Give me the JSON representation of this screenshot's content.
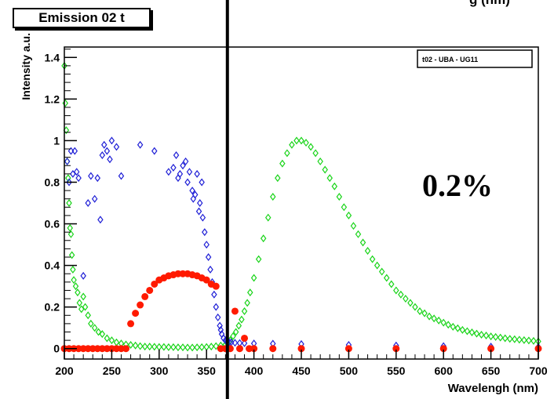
{
  "colors": {
    "series_green": "#19d419",
    "series_blue": "#1f1fd6",
    "series_red": "#ff1a00",
    "background": "#ffffff",
    "frame": "#000000"
  },
  "corner_text_partial": "g (nm)",
  "chart_data": {
    "type": "scatter",
    "title": "Emission 02 t",
    "xlabel": "Wavelengh (nm)",
    "ylabel": "Intensity a.u.",
    "xlim": [
      200,
      700
    ],
    "ylim": [
      -0.05,
      1.45
    ],
    "xticks": [
      200,
      250,
      300,
      350,
      400,
      450,
      500,
      550,
      600,
      650,
      700
    ],
    "yticks": [
      0,
      0.2,
      0.4,
      0.6,
      0.8,
      1,
      1.2,
      1.4
    ],
    "ytick_labels": [
      "0",
      "0.2",
      "0.4",
      "0.6",
      "0.8",
      "1",
      "1.2",
      "1.4"
    ],
    "legend_text": "t02 - UBA - UG11",
    "legend_position": "top-right",
    "annotation": "0.2%",
    "vertical_line_x": 372,
    "grid": false,
    "series": [
      {
        "marker": "open-diamond",
        "color": "#19d419",
        "x": [
          200,
          201,
          202,
          203,
          204,
          205,
          206,
          207,
          208,
          209,
          210,
          212,
          214,
          216,
          218,
          220,
          222,
          225,
          228,
          232,
          236,
          240,
          245,
          250,
          255,
          260,
          265,
          270,
          275,
          280,
          285,
          290,
          295,
          300,
          305,
          310,
          315,
          320,
          325,
          330,
          335,
          340,
          345,
          350,
          355,
          360,
          365,
          370,
          372,
          375,
          378,
          381,
          384,
          387,
          390,
          393,
          396,
          400,
          405,
          410,
          415,
          420,
          425,
          430,
          435,
          440,
          445,
          450,
          455,
          460,
          465,
          470,
          475,
          480,
          485,
          490,
          495,
          500,
          505,
          510,
          515,
          520,
          525,
          530,
          535,
          540,
          545,
          550,
          555,
          560,
          565,
          570,
          575,
          580,
          585,
          590,
          595,
          600,
          605,
          610,
          615,
          620,
          625,
          630,
          635,
          640,
          645,
          650,
          655,
          660,
          665,
          670,
          675,
          680,
          685,
          690,
          695,
          700
        ],
        "y": [
          1.36,
          1.18,
          1.05,
          0.9,
          0.82,
          0.7,
          0.58,
          0.55,
          0.45,
          0.38,
          0.33,
          0.3,
          0.27,
          0.22,
          0.19,
          0.25,
          0.2,
          0.16,
          0.12,
          0.1,
          0.08,
          0.07,
          0.05,
          0.04,
          0.03,
          0.025,
          0.02,
          0.018,
          0.015,
          0.012,
          0.01,
          0.01,
          0.009,
          0.008,
          0.008,
          0.007,
          0.007,
          0.006,
          0.006,
          0.005,
          0.005,
          0.006,
          0.007,
          0.008,
          0.01,
          0.012,
          0.015,
          0.02,
          0.025,
          0.04,
          0.06,
          0.08,
          0.11,
          0.14,
          0.18,
          0.22,
          0.27,
          0.34,
          0.43,
          0.53,
          0.63,
          0.73,
          0.82,
          0.89,
          0.94,
          0.98,
          1.0,
          1.0,
          0.99,
          0.97,
          0.94,
          0.9,
          0.86,
          0.82,
          0.78,
          0.73,
          0.68,
          0.64,
          0.59,
          0.55,
          0.51,
          0.47,
          0.43,
          0.4,
          0.37,
          0.34,
          0.31,
          0.28,
          0.26,
          0.24,
          0.22,
          0.2,
          0.18,
          0.17,
          0.155,
          0.145,
          0.135,
          0.125,
          0.115,
          0.105,
          0.098,
          0.09,
          0.084,
          0.078,
          0.072,
          0.067,
          0.063,
          0.059,
          0.056,
          0.053,
          0.05,
          0.047,
          0.045,
          0.043,
          0.041,
          0.039,
          0.037,
          0.035
        ]
      },
      {
        "marker": "open-diamond",
        "color": "#1f1fd6",
        "x": [
          203,
          205,
          207,
          209,
          211,
          213,
          215,
          220,
          225,
          228,
          232,
          235,
          238,
          240,
          242,
          245,
          248,
          250,
          255,
          260,
          280,
          295,
          310,
          315,
          318,
          320,
          322,
          325,
          328,
          330,
          332,
          335,
          336,
          338,
          340,
          342,
          343,
          345,
          346,
          348,
          350,
          352,
          354,
          356,
          358,
          360,
          362,
          364,
          365,
          366,
          368,
          370,
          372,
          374,
          376,
          380,
          385,
          390,
          400,
          420,
          450,
          500,
          550,
          600,
          650,
          700
        ],
        "y": [
          0.9,
          0.8,
          0.95,
          0.84,
          0.95,
          0.85,
          0.82,
          0.35,
          0.7,
          0.83,
          0.72,
          0.82,
          0.62,
          0.93,
          0.98,
          0.95,
          0.91,
          1.0,
          0.97,
          0.83,
          0.98,
          0.95,
          0.85,
          0.87,
          0.93,
          0.82,
          0.84,
          0.88,
          0.9,
          0.8,
          0.85,
          0.76,
          0.72,
          0.74,
          0.84,
          0.66,
          0.7,
          0.8,
          0.63,
          0.56,
          0.5,
          0.44,
          0.38,
          0.32,
          0.26,
          0.2,
          0.15,
          0.11,
          0.09,
          0.07,
          0.05,
          0.04,
          0.035,
          0.03,
          0.03,
          0.028,
          0.027,
          0.026,
          0.025,
          0.024,
          0.022,
          0.018,
          0.015,
          0.012,
          0.01,
          0.008
        ]
      },
      {
        "marker": "filled-circle",
        "color": "#ff1a00",
        "x": [
          200,
          205,
          210,
          215,
          220,
          225,
          230,
          235,
          240,
          245,
          250,
          255,
          260,
          265,
          270,
          275,
          280,
          285,
          290,
          295,
          300,
          305,
          310,
          315,
          320,
          325,
          330,
          335,
          340,
          345,
          350,
          355,
          360,
          365,
          370,
          375,
          380,
          385,
          390,
          395,
          400,
          420,
          450,
          500,
          550,
          600,
          650,
          700
        ],
        "y": [
          0,
          0,
          0,
          0,
          0,
          0,
          0,
          0,
          0,
          0,
          0,
          0,
          0,
          0,
          0.12,
          0.17,
          0.21,
          0.25,
          0.28,
          0.31,
          0.33,
          0.34,
          0.35,
          0.355,
          0.36,
          0.36,
          0.36,
          0.355,
          0.35,
          0.34,
          0.33,
          0.31,
          0.3,
          0.0,
          0.0,
          0.0,
          0.18,
          0.0,
          0.05,
          0.0,
          0,
          0,
          0,
          0,
          0,
          0,
          0,
          0
        ]
      }
    ]
  }
}
